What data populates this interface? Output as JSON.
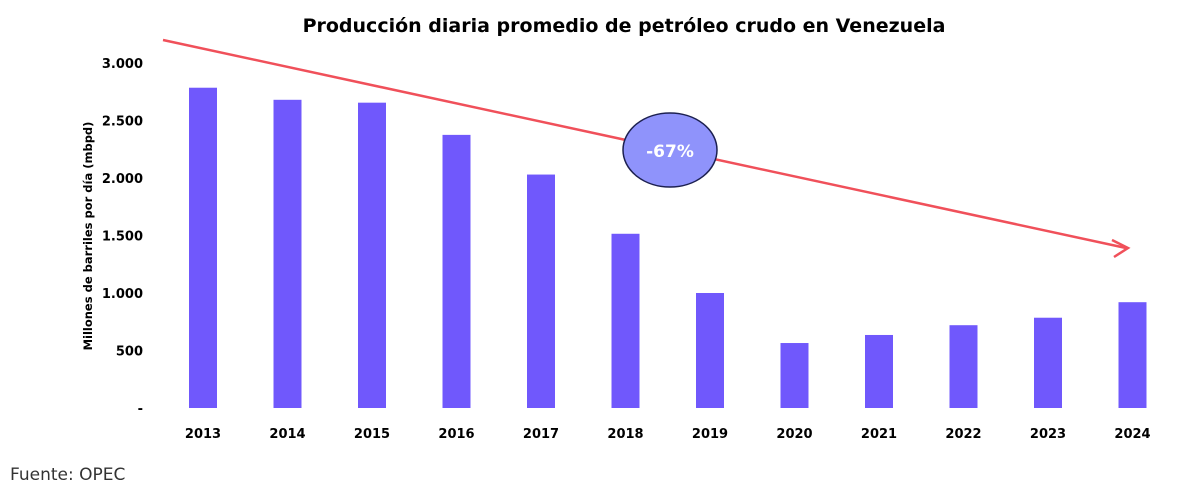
{
  "chart_data": {
    "type": "bar",
    "title": "Producción diaria promedio de petróleo crudo en Venezuela",
    "xlabel": "",
    "ylabel": "Millones de barriles por día (mbpd)",
    "categories": [
      "2013",
      "2014",
      "2015",
      "2016",
      "2017",
      "2018",
      "2019",
      "2020",
      "2021",
      "2022",
      "2023",
      "2024"
    ],
    "values": [
      2785,
      2680,
      2655,
      2375,
      2030,
      1515,
      1000,
      565,
      635,
      720,
      785,
      920
    ],
    "ylim": [
      0,
      3000
    ],
    "yticks": [
      0,
      500,
      1000,
      1500,
      2000,
      2500,
      3000
    ],
    "ytick_labels": [
      "-",
      "500",
      "1.000",
      "1.500",
      "2.000",
      "2.500",
      "3.000"
    ],
    "grid": false,
    "bar_color": "#7058fc",
    "trend_arrow_color": "#f0505a",
    "annotation": {
      "text": "-67%",
      "fill": "#8f93fb",
      "stroke": "#1c2050"
    }
  },
  "source": "Fuente: OPEC"
}
